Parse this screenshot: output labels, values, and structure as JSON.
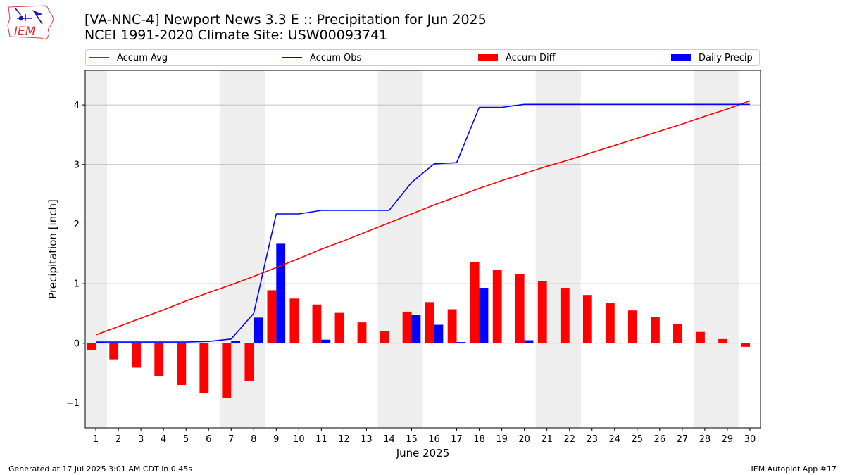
{
  "header": {
    "title_line1": "[VA-NNC-4] Newport News 3.3 E :: Precipitation for Jun 2025",
    "title_line2": "NCEI 1991-2020 Climate Site: USW00093741"
  },
  "logo": {
    "text": "IEM",
    "icon": "iem-iowa-map-logo"
  },
  "footer": {
    "generated": "Generated at 17 Jul 2025 3:01 AM CDT in 0.45s",
    "app": "IEM Autoplot App #17"
  },
  "colors": {
    "accum_avg": "#ff0000",
    "accum_obs": "#0000ff",
    "accum_diff": "#ff0000",
    "daily_precip": "#0000ff",
    "weekend_shade": "#eeeeee",
    "grid": "#b0b0b0"
  },
  "chart_data": {
    "type": "bar",
    "xlabel": "June 2025",
    "ylabel": "Precipitation [inch]",
    "ylim": [
      -1.42,
      4.58
    ],
    "yticks": [
      -1,
      0,
      1,
      2,
      3,
      4
    ],
    "ytick_labels": [
      "−1",
      "0",
      "1",
      "2",
      "3",
      "4"
    ],
    "grid": "horizontal",
    "legend_position": "top",
    "days": [
      1,
      2,
      3,
      4,
      5,
      6,
      7,
      8,
      9,
      10,
      11,
      12,
      13,
      14,
      15,
      16,
      17,
      18,
      19,
      20,
      21,
      22,
      23,
      24,
      25,
      26,
      27,
      28,
      29,
      30
    ],
    "shaded_day_ranges": [
      [
        0.5,
        1.5
      ],
      [
        6.5,
        8.5
      ],
      [
        13.5,
        15.5
      ],
      [
        20.5,
        22.5
      ],
      [
        27.5,
        29.5
      ]
    ],
    "series": [
      {
        "name": "Accum Avg",
        "kind": "line",
        "values": [
          0.14,
          0.28,
          0.42,
          0.56,
          0.71,
          0.85,
          0.98,
          1.12,
          1.27,
          1.42,
          1.58,
          1.72,
          1.87,
          2.02,
          2.17,
          2.32,
          2.46,
          2.6,
          2.73,
          2.85,
          2.97,
          3.08,
          3.2,
          3.32,
          3.44,
          3.56,
          3.68,
          3.81,
          3.93,
          4.07
        ]
      },
      {
        "name": "Accum Obs",
        "kind": "line",
        "values": [
          0.02,
          0.02,
          0.02,
          0.02,
          0.02,
          0.03,
          0.07,
          0.5,
          2.17,
          2.17,
          2.23,
          2.23,
          2.23,
          2.23,
          2.7,
          3.01,
          3.03,
          3.96,
          3.96,
          4.01,
          4.01,
          4.01,
          4.01,
          4.01,
          4.01,
          4.01,
          4.01,
          4.01,
          4.01,
          4.01
        ]
      },
      {
        "name": "Accum Diff",
        "kind": "bar",
        "values": [
          -0.12,
          -0.27,
          -0.41,
          -0.55,
          -0.7,
          -0.83,
          -0.92,
          -0.64,
          0.89,
          0.75,
          0.65,
          0.51,
          0.35,
          0.21,
          0.53,
          0.69,
          0.57,
          1.36,
          1.23,
          1.16,
          1.04,
          0.93,
          0.81,
          0.67,
          0.55,
          0.44,
          0.32,
          0.19,
          0.07,
          -0.06
        ]
      },
      {
        "name": "Daily Precip",
        "kind": "bar",
        "values": [
          0.02,
          0.0,
          0.0,
          0.0,
          0.0,
          0.01,
          0.04,
          0.43,
          1.67,
          0.0,
          0.06,
          0.0,
          0.0,
          0.0,
          0.47,
          0.31,
          0.02,
          0.93,
          0.0,
          0.05,
          0.0,
          0.0,
          0.0,
          0.0,
          0.0,
          0.0,
          0.0,
          0.0,
          0.0,
          0.0
        ]
      }
    ]
  }
}
